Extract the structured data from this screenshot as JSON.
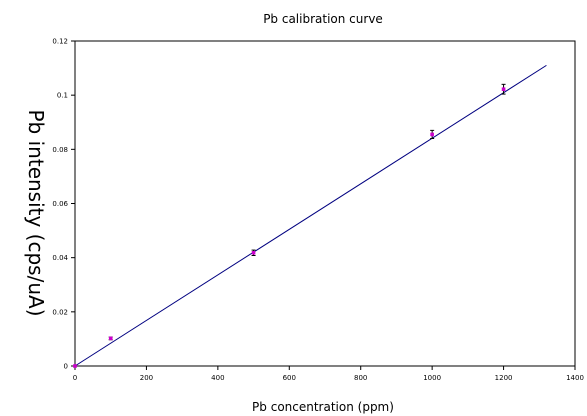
{
  "chart_data": {
    "type": "scatter",
    "title": "Pb calibration curve",
    "xlabel": "Pb concentration (ppm)",
    "ylabel": "Pb intensity (cps/uA)",
    "xlim": [
      0,
      1400
    ],
    "ylim": [
      0,
      0.12
    ],
    "xticks": [
      0,
      200,
      400,
      600,
      800,
      1000,
      1200,
      1400
    ],
    "xtick_labels": [
      "0",
      "200",
      "400",
      "600",
      "800",
      "1000",
      "1200",
      "1400"
    ],
    "yticks": [
      0,
      0.02,
      0.04,
      0.06,
      0.08,
      0.1,
      0.12
    ],
    "ytick_labels": [
      "0",
      "0.02",
      "0.04",
      "0.06",
      "0.08",
      "0.1",
      "0.12"
    ],
    "grid": false,
    "legend": "none",
    "series": [
      {
        "type": "scatter",
        "x": [
          0,
          100,
          500,
          1000,
          1200
        ],
        "y": [
          0,
          0.0102,
          0.0418,
          0.0855,
          0.1022
        ],
        "yerr": [
          0,
          0.0005,
          0.001,
          0.0015,
          0.0018
        ],
        "color": "#cc00cc"
      },
      {
        "type": "line",
        "x": [
          0,
          1320
        ],
        "y": [
          0,
          0.111
        ],
        "color": "#000080"
      }
    ]
  }
}
